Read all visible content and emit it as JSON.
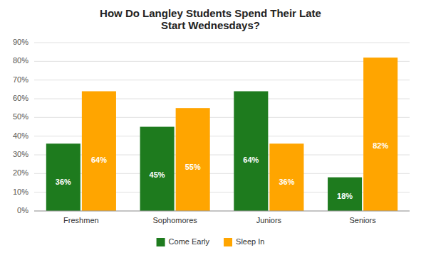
{
  "chart_data": {
    "type": "bar",
    "title": "How Do Langley Students Spend Their Late\nStart Wednesdays?",
    "categories": [
      "Freshmen",
      "Sophomores",
      "Juniors",
      "Seniors"
    ],
    "series": [
      {
        "name": "Come Early",
        "color": "#1e7b1e",
        "values": [
          36,
          45,
          64,
          18
        ],
        "value_labels": [
          "36%",
          "45%",
          "64%",
          "18%"
        ]
      },
      {
        "name": "Sleep In",
        "color": "#FFA500",
        "values": [
          64,
          55,
          36,
          82
        ],
        "value_labels": [
          "64%",
          "55%",
          "36%",
          "82%"
        ]
      }
    ],
    "ylim": [
      0,
      90
    ],
    "yticks": [
      {
        "value": 0,
        "label": "0%"
      },
      {
        "value": 10,
        "label": "10%"
      },
      {
        "value": 20,
        "label": "20%"
      },
      {
        "value": 30,
        "label": "30%"
      },
      {
        "value": 40,
        "label": "40%"
      },
      {
        "value": 50,
        "label": "50%"
      },
      {
        "value": 60,
        "label": "60%"
      },
      {
        "value": 70,
        "label": "70%"
      },
      {
        "value": 80,
        "label": "80%"
      },
      {
        "value": 90,
        "label": "90%"
      }
    ],
    "grid": true,
    "legend": "bottom",
    "data_labels": true
  }
}
